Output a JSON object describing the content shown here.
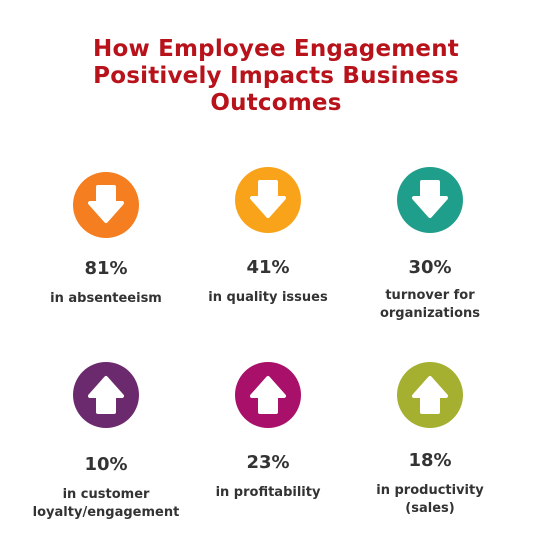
{
  "title": {
    "line1": "How Employee Engagement",
    "line2": "Positively Impacts Business",
    "line3": "Outcomes"
  },
  "colors": {
    "title": "#b8121b",
    "text": "#333333"
  },
  "stats": [
    {
      "value": "81%",
      "label": "in absenteeism",
      "icon": "arrow-down-icon",
      "color": "#f57e20"
    },
    {
      "value": "41%",
      "label": "in quality issues",
      "icon": "arrow-down-icon",
      "color": "#f9a31b"
    },
    {
      "value": "30%",
      "label": "turnover for\norganizations",
      "icon": "arrow-down-icon",
      "color": "#1f9e8c"
    },
    {
      "value": "10%",
      "label": "in customer\nloyalty/engagement",
      "icon": "arrow-up-icon",
      "color": "#6b2a6d"
    },
    {
      "value": "23%",
      "label": "in profitability",
      "icon": "arrow-up-icon",
      "color": "#a8106a"
    },
    {
      "value": "18%",
      "label": "in productivity\n(sales)",
      "icon": "arrow-up-icon",
      "color": "#a5b030"
    }
  ]
}
